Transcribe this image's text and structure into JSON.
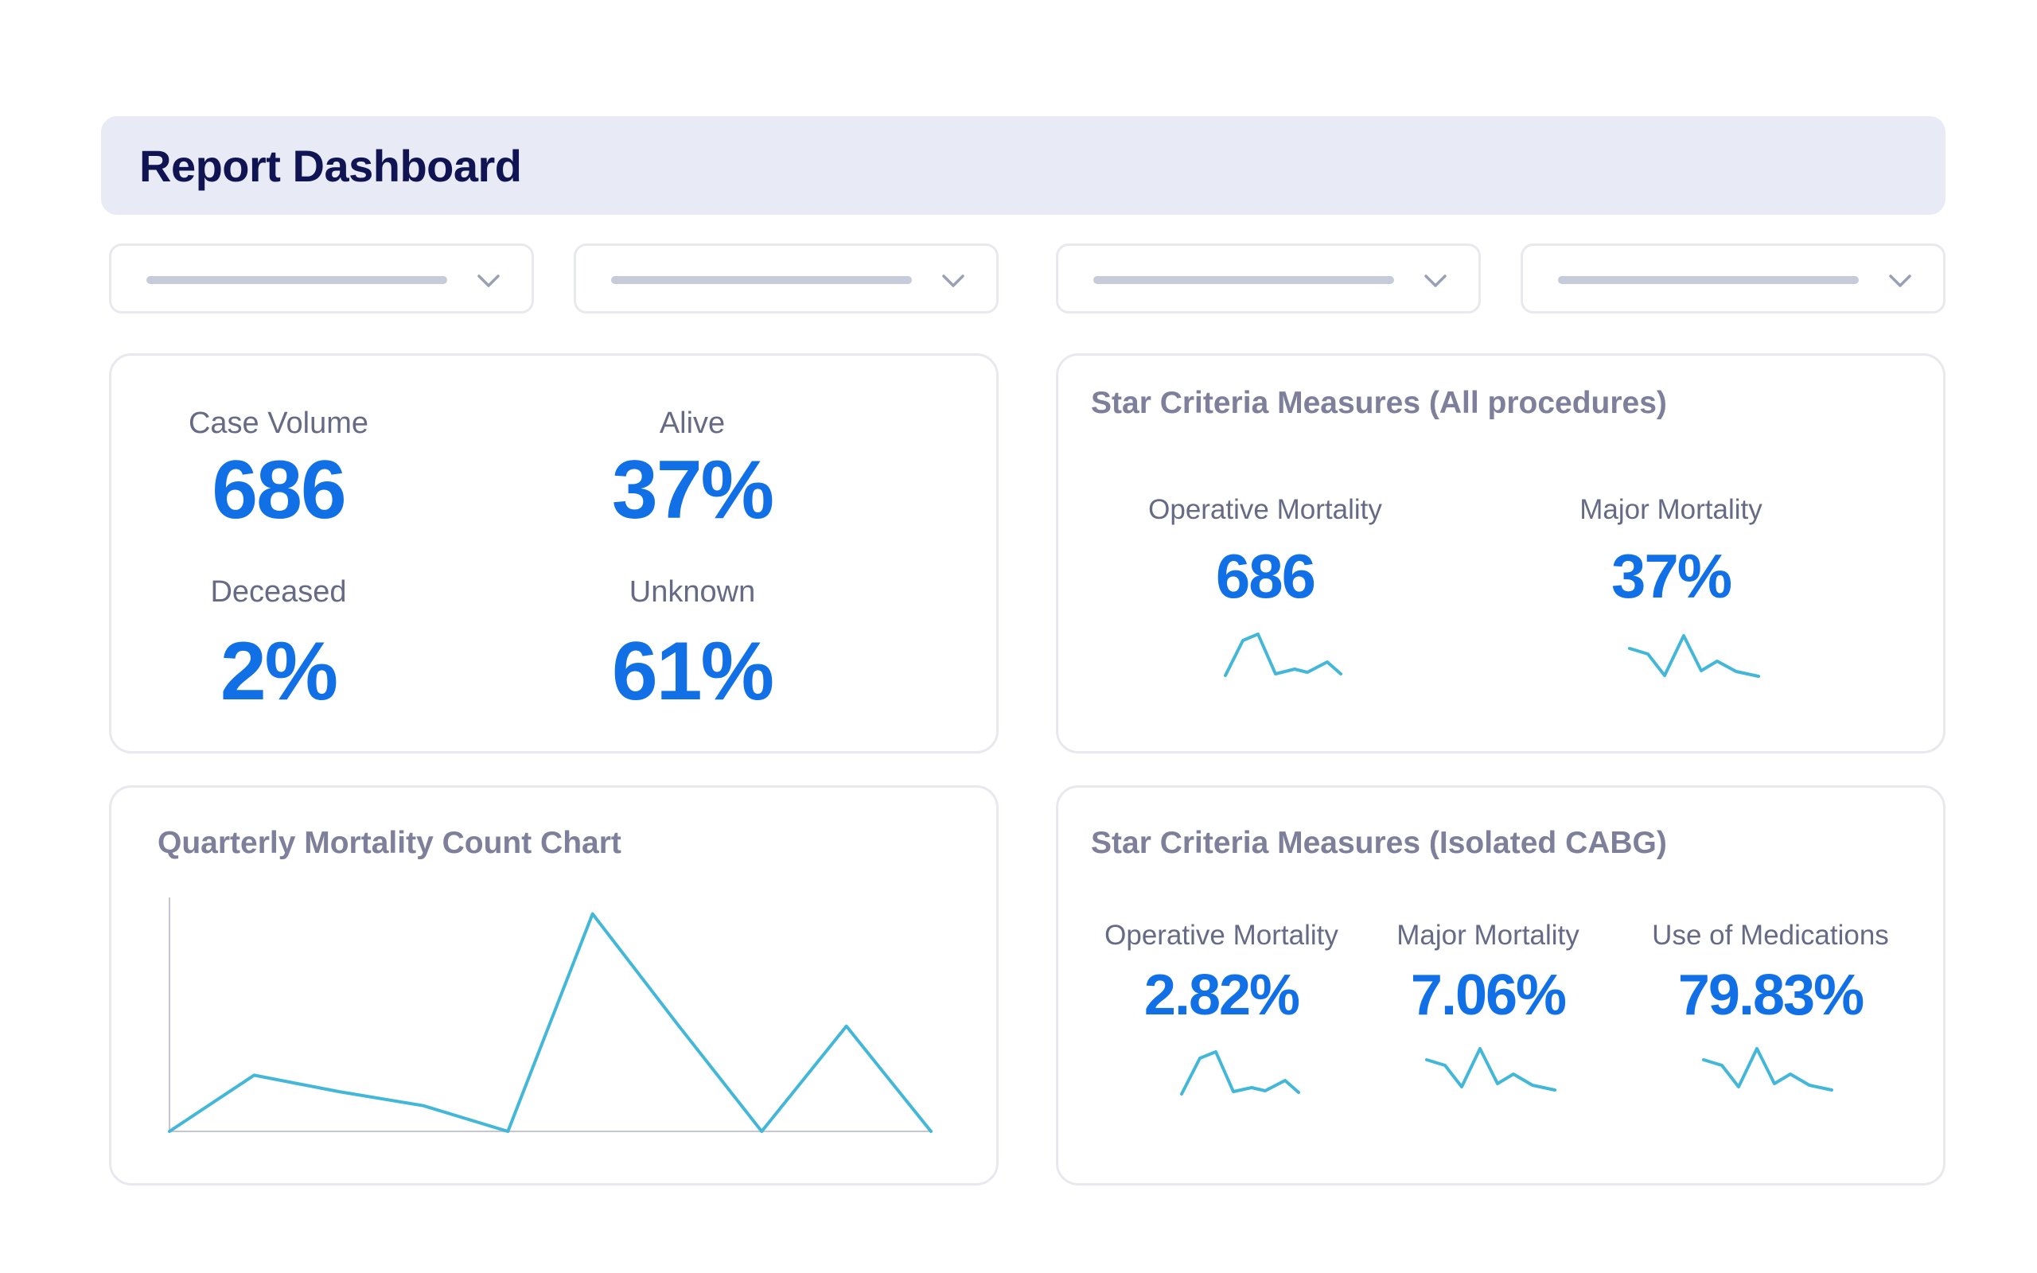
{
  "header": {
    "title": "Report Dashboard"
  },
  "filters": [
    {
      "icon": "chevron-down-icon"
    },
    {
      "icon": "chevron-down-icon"
    },
    {
      "icon": "chevron-down-icon"
    },
    {
      "icon": "chevron-down-icon"
    }
  ],
  "summary": {
    "case_volume": {
      "label": "Case Volume",
      "value": "686"
    },
    "alive": {
      "label": "Alive",
      "value": "37%"
    },
    "deceased": {
      "label": "Deceased",
      "value": "2%"
    },
    "unknown": {
      "label": "Unknown",
      "value": "61%"
    }
  },
  "star_all": {
    "title": "Star Criteria Measures (All procedures)",
    "metrics": [
      {
        "label": "Operative Mortality",
        "value": "686"
      },
      {
        "label": "Major Mortality",
        "value": "37%"
      }
    ]
  },
  "star_cabg": {
    "title": "Star Criteria Measures (Isolated CABG)",
    "metrics": [
      {
        "label": "Operative Mortality",
        "value": "2.82%"
      },
      {
        "label": "Major Mortality",
        "value": "7.06%"
      },
      {
        "label": "Use of Medications",
        "value": "79.83%"
      }
    ]
  },
  "colors": {
    "accent": "#1170e6",
    "line": "#42b7d8",
    "header_bg": "#e8ebf6",
    "title": "#111452"
  },
  "chart_data": {
    "type": "line",
    "title": "Quarterly Mortality Count Chart",
    "x": [
      1,
      2,
      3,
      4,
      5,
      6,
      7,
      8,
      9,
      10
    ],
    "series": [
      {
        "values": [
          0,
          24,
          17,
          11,
          0,
          93,
          46,
          0,
          45,
          0
        ]
      }
    ],
    "ylim": [
      0,
      100
    ],
    "xlabel": "",
    "ylabel": "",
    "grid": false
  }
}
